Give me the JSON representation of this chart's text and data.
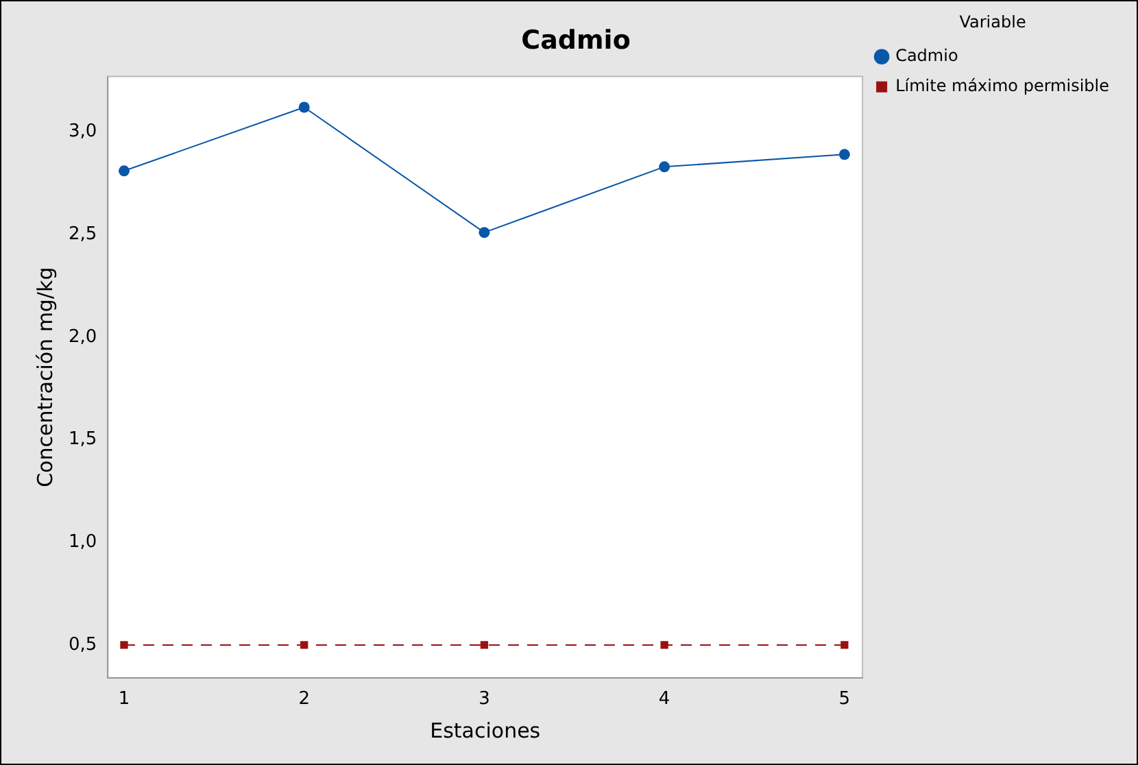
{
  "chart_data": {
    "type": "line",
    "title": "Cadmio",
    "xlabel": "Estaciones",
    "ylabel": "Concentración mg/kg",
    "legend_title": "Variable",
    "x": [
      1,
      2,
      3,
      4,
      5
    ],
    "series": [
      {
        "name": "Cadmio",
        "color": "#0a56a8",
        "values": [
          2.81,
          3.12,
          2.51,
          2.83,
          2.89
        ],
        "marker": "circle",
        "line_style": "solid"
      },
      {
        "name": "Límite máximo permisible",
        "color": "#9b1111",
        "values": [
          0.5,
          0.5,
          0.5,
          0.5,
          0.5
        ],
        "marker": "square",
        "line_style": "dashed"
      }
    ],
    "xlim": [
      0.91,
      5.1
    ],
    "xticks": [
      1,
      2,
      3,
      4,
      5
    ],
    "ylim": [
      0.34,
      3.27
    ],
    "yticks": [
      {
        "value": 0.5,
        "label": "0,5"
      },
      {
        "value": 1,
        "label": "1,0"
      },
      {
        "value": 1.5,
        "label": "1,5"
      },
      {
        "value": 2,
        "label": "2,0"
      },
      {
        "value": 2.5,
        "label": "2,5"
      },
      {
        "value": 3,
        "label": "3,0"
      }
    ],
    "grid": false,
    "legend": "top right"
  }
}
